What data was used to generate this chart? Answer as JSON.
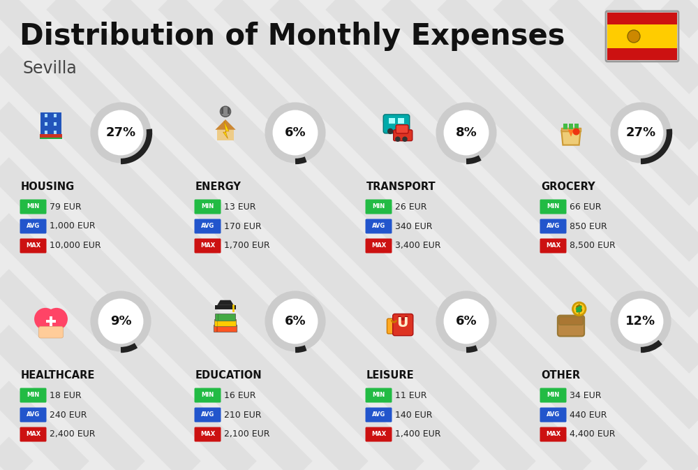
{
  "title": "Distribution of Monthly Expenses",
  "subtitle": "Sevilla",
  "bg_color": "#ebebeb",
  "stripe_color": "#d8d8d8",
  "categories": [
    {
      "name": "HOUSING",
      "percent": 27,
      "min_val": "79 EUR",
      "avg_val": "1,000 EUR",
      "max_val": "10,000 EUR",
      "row": 0,
      "col": 0
    },
    {
      "name": "ENERGY",
      "percent": 6,
      "min_val": "13 EUR",
      "avg_val": "170 EUR",
      "max_val": "1,700 EUR",
      "row": 0,
      "col": 1
    },
    {
      "name": "TRANSPORT",
      "percent": 8,
      "min_val": "26 EUR",
      "avg_val": "340 EUR",
      "max_val": "3,400 EUR",
      "row": 0,
      "col": 2
    },
    {
      "name": "GROCERY",
      "percent": 27,
      "min_val": "66 EUR",
      "avg_val": "850 EUR",
      "max_val": "8,500 EUR",
      "row": 0,
      "col": 3
    },
    {
      "name": "HEALTHCARE",
      "percent": 9,
      "min_val": "18 EUR",
      "avg_val": "240 EUR",
      "max_val": "2,400 EUR",
      "row": 1,
      "col": 0
    },
    {
      "name": "EDUCATION",
      "percent": 6,
      "min_val": "16 EUR",
      "avg_val": "210 EUR",
      "max_val": "2,100 EUR",
      "row": 1,
      "col": 1
    },
    {
      "name": "LEISURE",
      "percent": 6,
      "min_val": "11 EUR",
      "avg_val": "140 EUR",
      "max_val": "1,400 EUR",
      "row": 1,
      "col": 2
    },
    {
      "name": "OTHER",
      "percent": 12,
      "min_val": "34 EUR",
      "avg_val": "440 EUR",
      "max_val": "4,400 EUR",
      "row": 1,
      "col": 3
    }
  ],
  "min_color": "#22bb44",
  "avg_color": "#2255cc",
  "max_color": "#cc1111",
  "title_color": "#111111",
  "subtitle_color": "#444444",
  "category_name_color": "#111111",
  "value_color": "#222222",
  "circle_bg_color": "#cccccc",
  "circle_fill_color": "#ffffff",
  "circle_arc_color": "#222222",
  "flag_red": "#cc1111",
  "flag_yellow": "#ffcc00"
}
